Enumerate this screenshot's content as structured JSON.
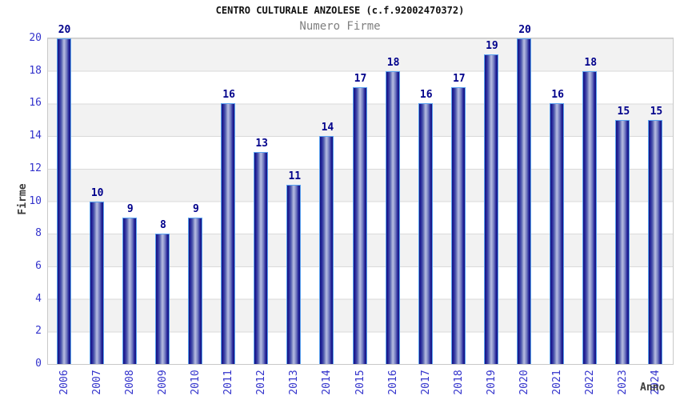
{
  "title": "CENTRO CULTURALE ANZOLESE (c.f.92002470372)",
  "subtitle": "Numero Firme",
  "chart_data": {
    "type": "bar",
    "title": "CENTRO CULTURALE ANZOLESE (c.f.92002470372)",
    "subtitle": "Numero Firme",
    "xlabel": "Anno",
    "ylabel": "Firme",
    "categories": [
      "2006",
      "2007",
      "2008",
      "2009",
      "2010",
      "2011",
      "2012",
      "2013",
      "2014",
      "2015",
      "2016",
      "2017",
      "2018",
      "2019",
      "2020",
      "2021",
      "2022",
      "2023",
      "2024"
    ],
    "values": [
      20,
      10,
      9,
      8,
      9,
      16,
      13,
      11,
      14,
      17,
      18,
      16,
      17,
      19,
      20,
      16,
      18,
      15,
      15
    ],
    "ylim": [
      0,
      20
    ],
    "ytick_step": 2,
    "yticks": [
      0,
      2,
      4,
      6,
      8,
      10,
      12,
      14,
      16,
      18,
      20
    ],
    "grid": true,
    "legend": "none",
    "colors": {
      "bar_dark": "#15157d",
      "bar_light": "#b3b9e0",
      "bar_outline": "#5aa2f0",
      "tick_label": "#3333cc",
      "value_label": "#00008b",
      "band_gray": "#f2f2f2",
      "gridline": "#dadada",
      "axis_title": "#3c3c3c",
      "subtitle_gray": "#7f7f7f"
    }
  }
}
